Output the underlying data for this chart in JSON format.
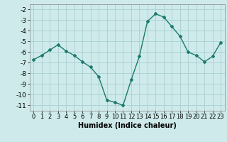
{
  "x": [
    0,
    1,
    2,
    3,
    4,
    5,
    6,
    7,
    8,
    9,
    10,
    11,
    12,
    13,
    14,
    15,
    16,
    17,
    18,
    19,
    20,
    21,
    22,
    23
  ],
  "y": [
    -6.7,
    -6.3,
    -5.8,
    -5.3,
    -5.9,
    -6.3,
    -6.9,
    -7.4,
    -8.3,
    -10.5,
    -10.7,
    -11.0,
    -8.6,
    -6.4,
    -3.1,
    -2.4,
    -2.7,
    -3.6,
    -4.5,
    -6.0,
    -6.3,
    -6.9,
    -6.4,
    -5.1
  ],
  "xlim": [
    -0.5,
    23.5
  ],
  "ylim": [
    -11.5,
    -1.5
  ],
  "yticks": [
    -2,
    -3,
    -4,
    -5,
    -6,
    -7,
    -8,
    -9,
    -10,
    -11
  ],
  "xticks": [
    0,
    1,
    2,
    3,
    4,
    5,
    6,
    7,
    8,
    9,
    10,
    11,
    12,
    13,
    14,
    15,
    16,
    17,
    18,
    19,
    20,
    21,
    22,
    23
  ],
  "xlabel": "Humidex (Indice chaleur)",
  "line_color": "#1a7a6e",
  "marker": "D",
  "marker_size": 2.0,
  "bg_color": "#ceeaea",
  "grid_color": "#aacfcf",
  "line_width": 1.0,
  "tick_fontsize": 6.0,
  "xlabel_fontsize": 7.0,
  "ytick_fontsize": 6.5
}
